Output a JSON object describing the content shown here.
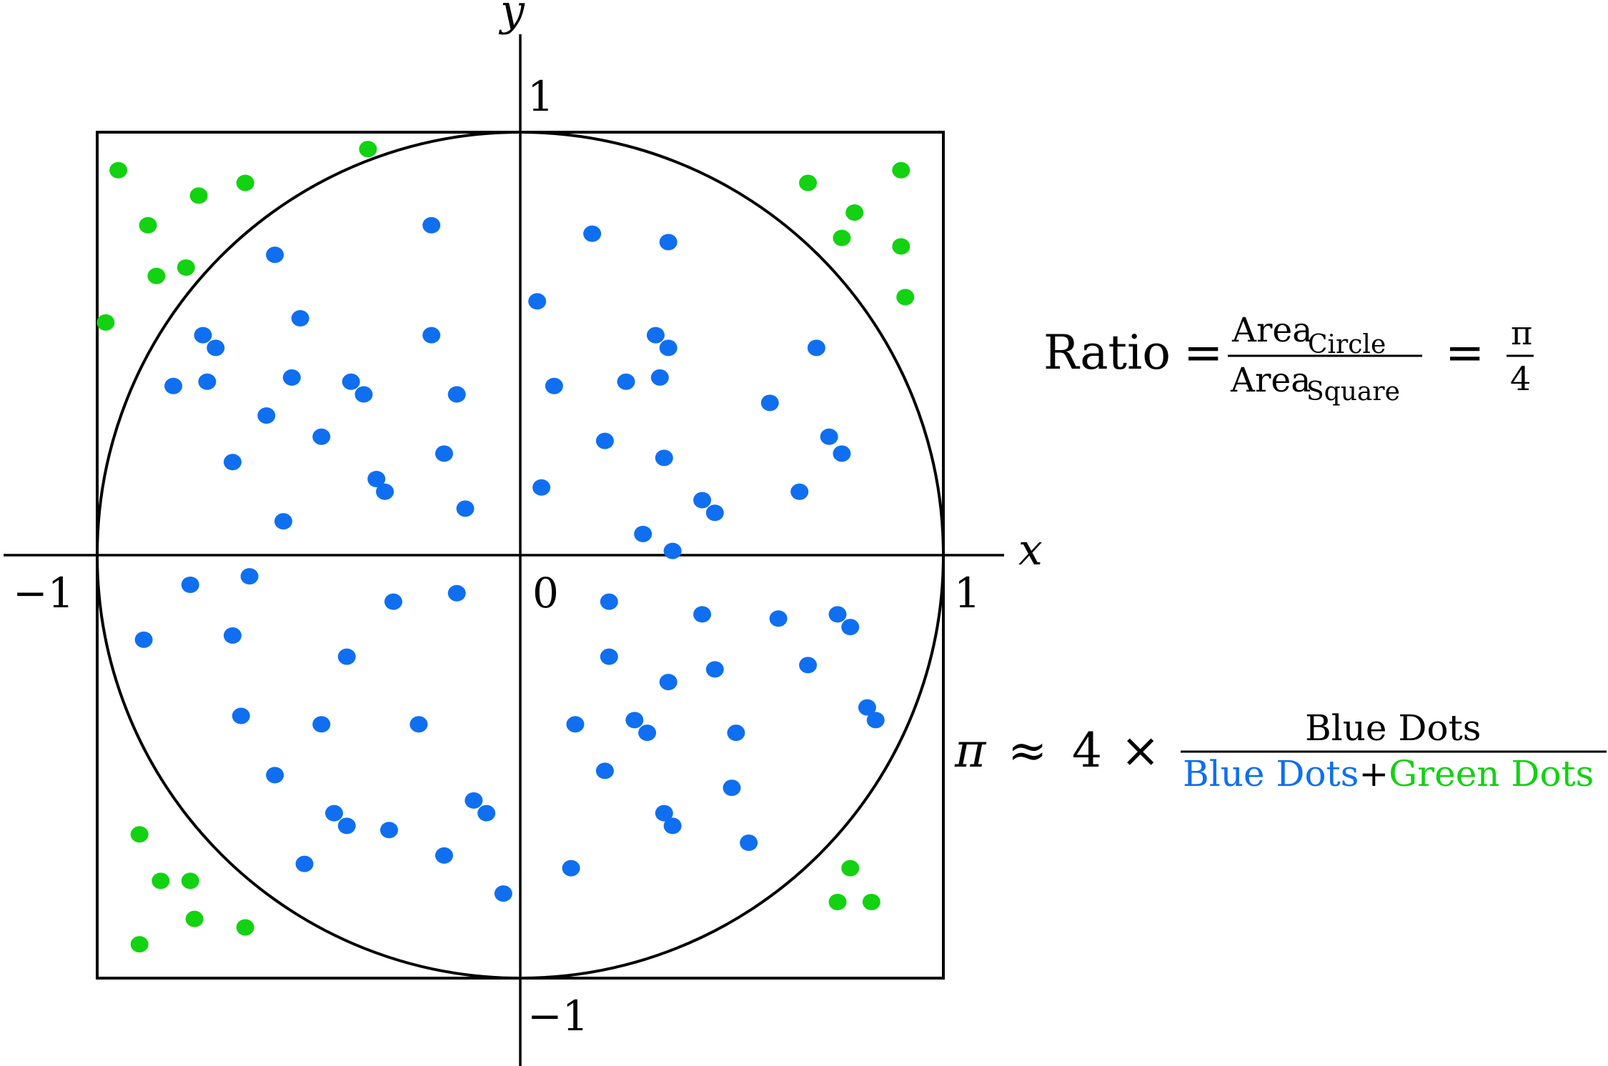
{
  "chart_data": {
    "type": "scatter",
    "title": "",
    "xlabel": "x",
    "ylabel": "y",
    "xlim": [
      -1.2,
      1.15
    ],
    "ylim": [
      -1.2,
      1.15
    ],
    "ticks": {
      "x_neg": "−1",
      "x_pos": "1",
      "y_pos": "1",
      "y_neg": "−1",
      "origin": "0"
    },
    "shapes": {
      "square": {
        "x0": -1,
        "x1": 1,
        "y0": -1,
        "y1": 1
      },
      "circle": {
        "cx": 0,
        "cy": 0,
        "r": 1
      }
    },
    "colors": {
      "inside": "#0f6ff0",
      "outside": "#12d212",
      "lines": "#000000",
      "text": "#000000"
    },
    "series": [
      {
        "color_key": "inside",
        "points": [
          [
            -0.21,
            0.78
          ],
          [
            -0.58,
            0.71
          ],
          [
            0.17,
            0.76
          ],
          [
            0.35,
            0.74
          ],
          [
            -0.52,
            0.56
          ],
          [
            -0.21,
            0.52
          ],
          [
            0.04,
            0.6
          ],
          [
            0.32,
            0.52
          ],
          [
            0.35,
            0.49
          ],
          [
            -0.75,
            0.52
          ],
          [
            -0.72,
            0.49
          ],
          [
            -0.54,
            0.42
          ],
          [
            -0.82,
            0.4
          ],
          [
            -0.74,
            0.41
          ],
          [
            -0.4,
            0.41
          ],
          [
            -0.37,
            0.38
          ],
          [
            -0.15,
            0.38
          ],
          [
            0.08,
            0.4
          ],
          [
            0.25,
            0.41
          ],
          [
            0.33,
            0.42
          ],
          [
            0.7,
            0.49
          ],
          [
            0.59,
            0.36
          ],
          [
            -0.6,
            0.33
          ],
          [
            -0.47,
            0.28
          ],
          [
            -0.68,
            0.22
          ],
          [
            -0.18,
            0.24
          ],
          [
            0.2,
            0.27
          ],
          [
            0.34,
            0.23
          ],
          [
            0.73,
            0.28
          ],
          [
            0.76,
            0.24
          ],
          [
            -0.34,
            0.18
          ],
          [
            -0.32,
            0.15
          ],
          [
            0.05,
            0.16
          ],
          [
            0.43,
            0.13
          ],
          [
            0.66,
            0.15
          ],
          [
            -0.56,
            0.08
          ],
          [
            -0.13,
            0.11
          ],
          [
            0.46,
            0.1
          ],
          [
            0.29,
            0.05
          ],
          [
            0.36,
            0.01
          ],
          [
            -0.78,
            -0.07
          ],
          [
            -0.64,
            -0.05
          ],
          [
            -0.15,
            -0.09
          ],
          [
            -0.3,
            -0.11
          ],
          [
            -0.89,
            -0.2
          ],
          [
            -0.68,
            -0.19
          ],
          [
            -0.41,
            -0.24
          ],
          [
            0.21,
            -0.11
          ],
          [
            0.43,
            -0.14
          ],
          [
            0.61,
            -0.15
          ],
          [
            0.75,
            -0.14
          ],
          [
            0.78,
            -0.17
          ],
          [
            0.21,
            -0.24
          ],
          [
            0.46,
            -0.27
          ],
          [
            0.68,
            -0.26
          ],
          [
            0.35,
            -0.3
          ],
          [
            -0.66,
            -0.38
          ],
          [
            -0.47,
            -0.4
          ],
          [
            -0.24,
            -0.4
          ],
          [
            0.13,
            -0.4
          ],
          [
            0.27,
            -0.39
          ],
          [
            0.3,
            -0.42
          ],
          [
            0.51,
            -0.42
          ],
          [
            0.82,
            -0.36
          ],
          [
            0.84,
            -0.39
          ],
          [
            -0.58,
            -0.52
          ],
          [
            0.2,
            -0.51
          ],
          [
            0.5,
            -0.55
          ],
          [
            -0.44,
            -0.61
          ],
          [
            -0.41,
            -0.64
          ],
          [
            -0.31,
            -0.65
          ],
          [
            -0.11,
            -0.58
          ],
          [
            -0.08,
            -0.61
          ],
          [
            0.34,
            -0.61
          ],
          [
            0.36,
            -0.64
          ],
          [
            -0.51,
            -0.73
          ],
          [
            -0.18,
            -0.71
          ],
          [
            0.12,
            -0.74
          ],
          [
            0.54,
            -0.68
          ],
          [
            -0.04,
            -0.8
          ]
        ]
      },
      {
        "color_key": "outside",
        "points": [
          [
            -0.95,
            0.91
          ],
          [
            -0.76,
            0.85
          ],
          [
            -0.65,
            0.88
          ],
          [
            -0.88,
            0.78
          ],
          [
            -0.86,
            0.66
          ],
          [
            -0.79,
            0.68
          ],
          [
            -0.98,
            0.55
          ],
          [
            -0.36,
            0.96
          ],
          [
            0.68,
            0.88
          ],
          [
            0.9,
            0.91
          ],
          [
            0.79,
            0.81
          ],
          [
            0.76,
            0.75
          ],
          [
            0.9,
            0.73
          ],
          [
            0.91,
            0.61
          ],
          [
            -0.9,
            -0.66
          ],
          [
            -0.85,
            -0.77
          ],
          [
            -0.78,
            -0.77
          ],
          [
            -0.77,
            -0.86
          ],
          [
            -0.65,
            -0.88
          ],
          [
            -0.9,
            -0.92
          ],
          [
            0.78,
            -0.74
          ],
          [
            0.75,
            -0.82
          ],
          [
            0.83,
            -0.82
          ]
        ]
      }
    ],
    "annotations": {
      "ratio": {
        "prefix": "Ratio",
        "eq": "=",
        "num_word": "Area",
        "num_sub": "Circle",
        "den_word": "Area",
        "den_sub": "Square",
        "eq2": "=",
        "pi": "π",
        "four": "4"
      },
      "pi_est": {
        "pi": "π",
        "approx": "≈",
        "four": "4",
        "times": "×",
        "numerator": "Blue Dots",
        "den_blue": "Blue Dots",
        "plus": "+",
        "den_green": "Green Dots"
      }
    }
  }
}
